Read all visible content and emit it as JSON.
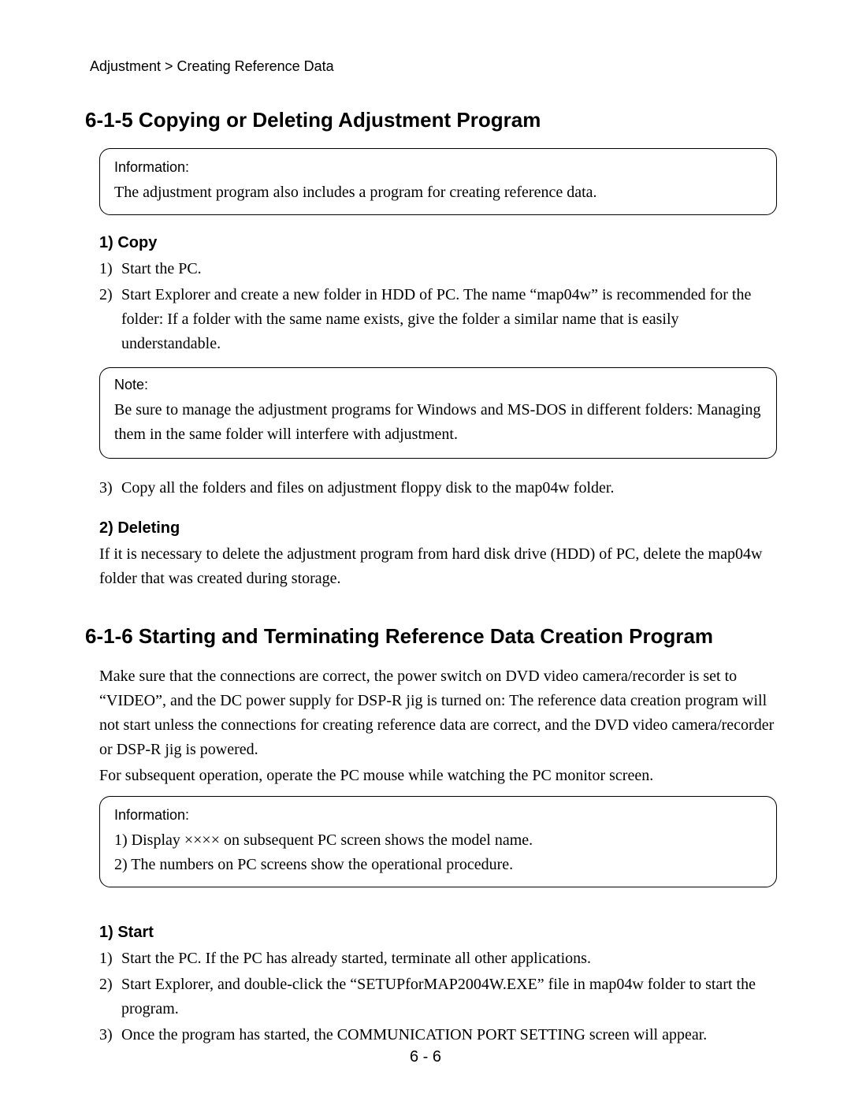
{
  "breadcrumb": "Adjustment > Creating Reference Data",
  "section615": {
    "title": "6-1-5  Copying or Deleting Adjustment Program",
    "info": {
      "label": "Information:",
      "body": "The adjustment program also includes a program for creating reference data."
    },
    "copy": {
      "heading": "1)  Copy",
      "items": [
        {
          "num": "1)",
          "txt": "Start the PC."
        },
        {
          "num": "2)",
          "txt": "Start Explorer and create a new folder in HDD of PC. The name “map04w” is recommended for the folder: If a folder with the same name exists, give the folder a similar name that is easily understandable."
        }
      ],
      "note": {
        "label": "Note:",
        "body": "Be sure to manage the adjustment programs for Windows and MS-DOS in different folders: Managing them in the same folder will interfere with adjustment."
      },
      "item3": {
        "num": "3)",
        "txt": "Copy all the folders and files on adjustment floppy disk to the map04w folder."
      }
    },
    "deleting": {
      "heading": "2)  Deleting",
      "body": "If it is necessary to delete the adjustment program from hard disk drive (HDD) of PC, delete the map04w folder that was created during storage."
    }
  },
  "section616": {
    "title": "6-1-6  Starting and Terminating Reference Data Creation Program",
    "intro1": "Make sure that the connections are correct, the power switch on DVD video camera/recorder is set to “VIDEO”, and the DC power supply for DSP-R jig is turned on: The reference data creation program will not start unless the connections for creating reference data are correct, and the DVD video camera/recorder or DSP-R jig is powered.",
    "intro2": "For subsequent operation, operate the PC mouse while watching the PC monitor screen.",
    "info": {
      "label": "Information:",
      "line1": "1) Display ×××× on subsequent PC screen shows the model name.",
      "line2": "2) The numbers on PC screens show the operational procedure."
    },
    "start": {
      "heading": "1)  Start",
      "items": [
        {
          "num": "1)",
          "txt": "Start the PC. If the PC has already started, terminate all other applications."
        },
        {
          "num": "2)",
          "txt": "Start Explorer, and double-click the “SETUPforMAP2004W.EXE” file in map04w folder to start the program."
        },
        {
          "num": "3)",
          "txt": "Once the program has started, the COMMUNICATION PORT SETTING screen will appear."
        }
      ]
    }
  },
  "pageNumber": "6  -  6",
  "style": {
    "page_bg": "#ffffff",
    "text_color": "#000000",
    "serif_font": "Times New Roman",
    "sans_font": "Arial",
    "title_fontsize": 26,
    "body_fontsize": 20,
    "label_fontsize": 18,
    "box_border_color": "#000000",
    "box_border_radius": 14
  }
}
